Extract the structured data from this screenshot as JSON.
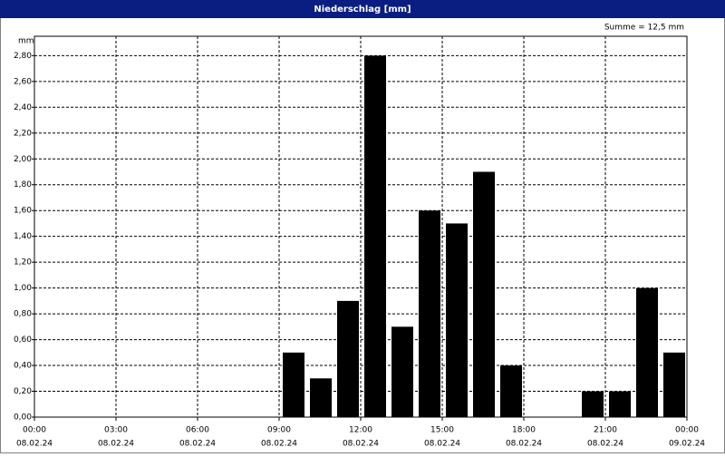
{
  "chart_data": {
    "type": "bar",
    "title": "Niederschlag [mm]",
    "y_unit": "mm",
    "annotation": "Summe = 12,5 mm",
    "color": "#000000",
    "x": [
      9,
      10,
      11,
      12,
      13,
      14,
      15,
      16,
      17,
      18,
      19,
      20,
      21,
      22,
      23
    ],
    "values": [
      0.5,
      0.3,
      0.9,
      2.8,
      0.7,
      1.6,
      1.5,
      1.9,
      0.4,
      0,
      0,
      0.2,
      0.2,
      1.0,
      0.5
    ],
    "xlim": [
      0,
      24
    ],
    "xticks": [
      {
        "value": 0,
        "label": "00:00"
      },
      {
        "value": 3,
        "label": "03:00"
      },
      {
        "value": 6,
        "label": "06:00"
      },
      {
        "value": 9,
        "label": "09:00"
      },
      {
        "value": 12,
        "label": "12:00"
      },
      {
        "value": 15,
        "label": "15:00"
      },
      {
        "value": 18,
        "label": "18:00"
      },
      {
        "value": 21,
        "label": "21:00"
      },
      {
        "value": 24,
        "label": "00:00"
      }
    ],
    "xtick_dates": [
      "08.02.24",
      "08.02.24",
      "08.02.24",
      "08.02.24",
      "08.02.24",
      "08.02.24",
      "08.02.24",
      "08.02.24",
      "09.02.24"
    ],
    "ylim": [
      0,
      2.95
    ],
    "yticks": [
      {
        "value": 0,
        "label": "0,00"
      },
      {
        "value": 0.2,
        "label": "0,20"
      },
      {
        "value": 0.4,
        "label": "0,40"
      },
      {
        "value": 0.6,
        "label": "0,60"
      },
      {
        "value": 0.8,
        "label": "0,80"
      },
      {
        "value": 1.0,
        "label": "1,00"
      },
      {
        "value": 1.2,
        "label": "1,20"
      },
      {
        "value": 1.4,
        "label": "1,40"
      },
      {
        "value": 1.6,
        "label": "1,60"
      },
      {
        "value": 1.8,
        "label": "1,80"
      },
      {
        "value": 2.0,
        "label": "2,00"
      },
      {
        "value": 2.2,
        "label": "2,20"
      },
      {
        "value": 2.4,
        "label": "2,40"
      },
      {
        "value": 2.6,
        "label": "2,60"
      },
      {
        "value": 2.8,
        "label": "2,80"
      }
    ],
    "grid": true
  }
}
